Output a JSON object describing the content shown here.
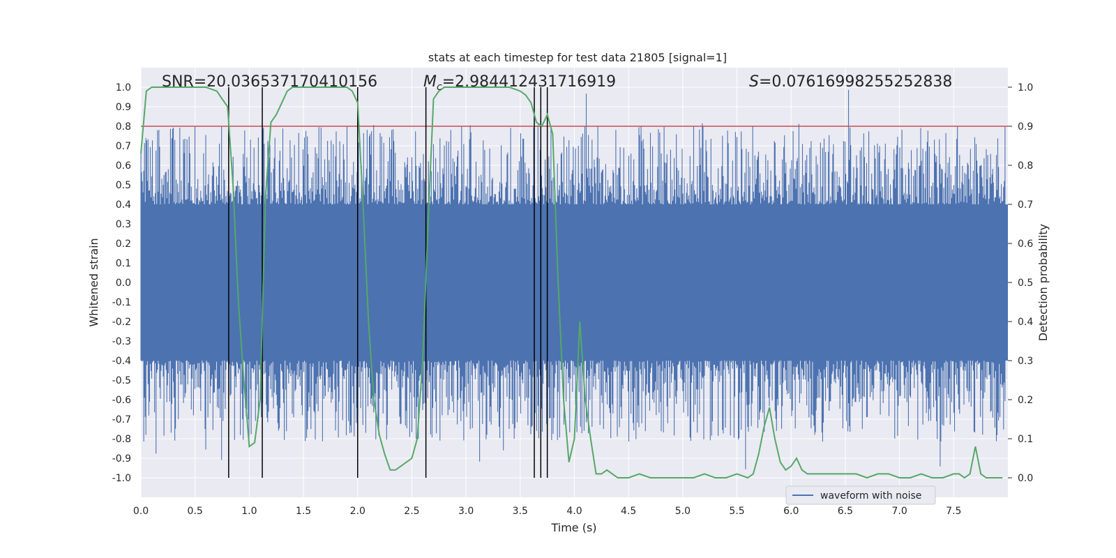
{
  "chart_data": {
    "type": "line",
    "title": "stats at each timestep for test data 21805 [signal=1]",
    "xlabel": "Time (s)",
    "ylabel": "Whitened strain",
    "ylabel_right": "Detection probability",
    "xlim": [
      0.0,
      8.0
    ],
    "ylim": [
      -1.1,
      1.1
    ],
    "ylim_right": [
      -0.05,
      1.05
    ],
    "xticks": [
      "0.0",
      "0.5",
      "1.0",
      "1.5",
      "2.0",
      "2.5",
      "3.0",
      "3.5",
      "4.0",
      "4.5",
      "5.0",
      "5.5",
      "6.0",
      "6.5",
      "7.0",
      "7.5"
    ],
    "yticks": [
      "1.0",
      "0.9",
      "0.8",
      "0.7",
      "0.6",
      "0.5",
      "0.4",
      "0.3",
      "0.2",
      "0.1",
      "0.0",
      "-0.1",
      "-0.2",
      "-0.3",
      "-0.4",
      "-0.5",
      "-0.6",
      "-0.7",
      "-0.8",
      "-0.9",
      "-1.0"
    ],
    "yticks_right": [
      "1.0",
      "0.9",
      "0.8",
      "0.7",
      "0.6",
      "0.5",
      "0.4",
      "0.3",
      "0.2",
      "0.1",
      "0.0"
    ],
    "grid": true,
    "legend": {
      "location": "bottom-right",
      "entries": [
        "waveform with noise"
      ]
    },
    "annotations": {
      "snr": "SNR=20.036537170410156",
      "mc_symbol": "M",
      "mc_sub": "c",
      "mc_value": "=2.984412431716919",
      "s_symbol": "S",
      "s_value": "=0.07616998255252838"
    },
    "threshold": 0.8,
    "vertical_lines_x": [
      0.81,
      1.12,
      2.0,
      2.63,
      3.63,
      3.69,
      3.75
    ],
    "waveform": {
      "name": "waveform with noise",
      "samples": 1200,
      "core_amplitude": 0.4,
      "spike_min": -0.98,
      "spike_max": 1.0
    },
    "probability_series": {
      "name": "Detection probability",
      "x": [
        0.0,
        0.05,
        0.1,
        0.2,
        0.3,
        0.4,
        0.5,
        0.6,
        0.7,
        0.75,
        0.8,
        0.85,
        0.9,
        0.95,
        1.0,
        1.05,
        1.1,
        1.15,
        1.2,
        1.25,
        1.3,
        1.35,
        1.4,
        1.45,
        1.5,
        1.6,
        1.7,
        1.8,
        1.9,
        1.95,
        2.0,
        2.05,
        2.1,
        2.15,
        2.2,
        2.25,
        2.3,
        2.35,
        2.4,
        2.45,
        2.5,
        2.55,
        2.6,
        2.65,
        2.7,
        2.75,
        2.8,
        2.9,
        3.0,
        3.1,
        3.2,
        3.3,
        3.4,
        3.5,
        3.55,
        3.6,
        3.65,
        3.7,
        3.75,
        3.8,
        3.85,
        3.9,
        3.95,
        4.0,
        4.05,
        4.1,
        4.15,
        4.2,
        4.25,
        4.3,
        4.35,
        4.4,
        4.5,
        4.6,
        4.7,
        4.8,
        4.9,
        5.0,
        5.1,
        5.2,
        5.3,
        5.4,
        5.5,
        5.6,
        5.65,
        5.7,
        5.75,
        5.8,
        5.85,
        5.9,
        5.95,
        6.0,
        6.05,
        6.1,
        6.15,
        6.2,
        6.3,
        6.4,
        6.5,
        6.6,
        6.7,
        6.8,
        6.9,
        7.0,
        7.1,
        7.2,
        7.3,
        7.4,
        7.5,
        7.55,
        7.6,
        7.65,
        7.7,
        7.75,
        7.8,
        7.9,
        7.95
      ],
      "y": [
        0.83,
        0.99,
        1.0,
        1.0,
        1.0,
        1.0,
        1.0,
        1.0,
        0.99,
        0.97,
        0.95,
        0.75,
        0.45,
        0.25,
        0.08,
        0.09,
        0.2,
        0.72,
        0.91,
        0.93,
        0.96,
        0.99,
        1.0,
        1.0,
        1.0,
        1.0,
        1.0,
        1.0,
        1.0,
        0.99,
        0.96,
        0.7,
        0.4,
        0.2,
        0.11,
        0.06,
        0.02,
        0.02,
        0.03,
        0.04,
        0.05,
        0.1,
        0.3,
        0.65,
        0.97,
        0.99,
        1.0,
        1.0,
        1.0,
        1.0,
        1.0,
        1.0,
        1.0,
        0.99,
        0.98,
        0.96,
        0.91,
        0.9,
        0.93,
        0.88,
        0.5,
        0.2,
        0.04,
        0.1,
        0.4,
        0.2,
        0.1,
        0.01,
        0.01,
        0.02,
        0.01,
        0.0,
        0.0,
        0.01,
        0.0,
        0.0,
        0.0,
        0.0,
        0.0,
        0.01,
        0.0,
        0.0,
        0.01,
        0.0,
        0.01,
        0.06,
        0.13,
        0.18,
        0.1,
        0.04,
        0.02,
        0.03,
        0.05,
        0.02,
        0.01,
        0.01,
        0.01,
        0.01,
        0.01,
        0.01,
        0.0,
        0.01,
        0.01,
        0.0,
        0.0,
        0.01,
        0.0,
        0.0,
        0.01,
        0.01,
        0.0,
        0.01,
        0.08,
        0.01,
        0.0,
        0.0,
        0.0
      ]
    }
  }
}
